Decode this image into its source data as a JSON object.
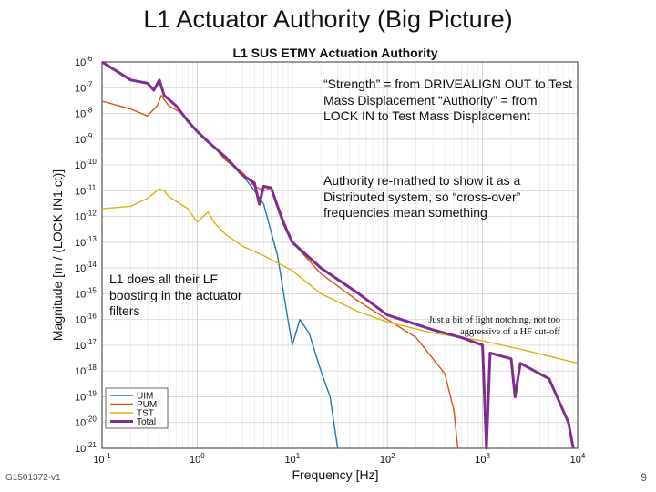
{
  "slide": {
    "title": "L1 Actuator Authority (Big Picture)",
    "doc_id": "G1501372-v1",
    "page_number": "9",
    "annotations": {
      "strength": "“Strength” = from DRIVEALIGN OUT to Test Mass Displacement “Authority” = from LOCK IN to Test Mass Displacement",
      "remathed": "Authority re-mathed to show it as a Distributed system, so “cross-over” frequencies mean something",
      "lf_boost": "L1 does all their LF boosting in the actuator filters",
      "notching": "Just a bit of light notching, not too aggressive of a HF cut-off"
    }
  },
  "chart_data": {
    "type": "line",
    "title": "L1 SUS ETMY Actuation Authority",
    "xlabel": "Frequency [Hz]",
    "ylabel": "Magnitude [m / (LOCK IN1 ct)]",
    "xscale": "log",
    "yscale": "log",
    "xlim": [
      0.1,
      10000
    ],
    "ylim": [
      1e-21,
      1e-06
    ],
    "xticks": [
      0.1,
      1,
      10,
      100,
      1000,
      10000
    ],
    "yticks": [
      1e-06,
      1e-07,
      1e-08,
      1e-09,
      1e-10,
      1e-11,
      1e-12,
      1e-13,
      1e-14,
      1e-15,
      1e-16,
      1e-17,
      1e-18,
      1e-19,
      1e-20,
      1e-21
    ],
    "grid": true,
    "legend": "bottom-left",
    "colors": {
      "UIM": "#1f77b4",
      "PUM": "#d95319",
      "TST": "#e0b010",
      "Total": "#7e2f8e"
    },
    "series": [
      {
        "name": "UIM",
        "points": [
          [
            0.1,
            1e-06
          ],
          [
            0.2,
            2e-07
          ],
          [
            0.3,
            1.5e-07
          ],
          [
            0.35,
            8e-08
          ],
          [
            0.4,
            2e-07
          ],
          [
            0.45,
            5e-08
          ],
          [
            0.6,
            2e-08
          ],
          [
            0.8,
            5e-09
          ],
          [
            1,
            2e-09
          ],
          [
            1.3,
            8e-10
          ],
          [
            2,
            2e-10
          ],
          [
            3,
            4e-11
          ],
          [
            4,
            1e-11
          ],
          [
            5,
            3e-12
          ],
          [
            7,
            3e-14
          ],
          [
            9,
            1e-16
          ],
          [
            10,
            1e-17
          ],
          [
            12,
            1e-16
          ],
          [
            15,
            3e-17
          ],
          [
            20,
            1e-18
          ],
          [
            25,
            1e-19
          ],
          [
            30,
            1e-21
          ]
        ]
      },
      {
        "name": "PUM",
        "points": [
          [
            0.1,
            3e-08
          ],
          [
            0.2,
            1.5e-08
          ],
          [
            0.3,
            8e-09
          ],
          [
            0.38,
            2e-08
          ],
          [
            0.42,
            5e-08
          ],
          [
            0.5,
            2e-08
          ],
          [
            0.7,
            1e-08
          ],
          [
            1,
            2e-09
          ],
          [
            1.5,
            5e-10
          ],
          [
            2,
            1.5e-10
          ],
          [
            3,
            5e-11
          ],
          [
            4,
            1.5e-11
          ],
          [
            5,
            1e-11
          ],
          [
            6,
            1.3e-11
          ],
          [
            8,
            8e-13
          ],
          [
            10,
            1e-13
          ],
          [
            20,
            6e-15
          ],
          [
            50,
            5e-16
          ],
          [
            100,
            1e-16
          ],
          [
            200,
            2e-17
          ],
          [
            400,
            8e-19
          ],
          [
            500,
            3e-20
          ],
          [
            550,
            1e-21
          ]
        ]
      },
      {
        "name": "TST",
        "points": [
          [
            0.1,
            2e-12
          ],
          [
            0.2,
            2.5e-12
          ],
          [
            0.3,
            5e-12
          ],
          [
            0.4,
            1.2e-11
          ],
          [
            0.45,
            1e-11
          ],
          [
            0.5,
            6e-12
          ],
          [
            0.8,
            2e-12
          ],
          [
            1,
            6e-13
          ],
          [
            1.3,
            1.5e-12
          ],
          [
            1.5,
            6e-13
          ],
          [
            2,
            2e-13
          ],
          [
            3,
            7e-14
          ],
          [
            5,
            3e-14
          ],
          [
            10,
            8e-15
          ],
          [
            20,
            1e-15
          ],
          [
            50,
            2e-16
          ],
          [
            100,
            8e-17
          ],
          [
            300,
            3e-17
          ],
          [
            1000,
            1.5e-17
          ],
          [
            3000,
            6e-18
          ],
          [
            10000,
            2e-18
          ]
        ]
      },
      {
        "name": "Total",
        "points": [
          [
            0.1,
            1e-06
          ],
          [
            0.2,
            2e-07
          ],
          [
            0.3,
            1.5e-07
          ],
          [
            0.35,
            8e-08
          ],
          [
            0.4,
            2e-07
          ],
          [
            0.45,
            5e-08
          ],
          [
            0.6,
            2e-08
          ],
          [
            0.8,
            5e-09
          ],
          [
            1,
            2e-09
          ],
          [
            1.3,
            8e-10
          ],
          [
            2,
            2e-10
          ],
          [
            3,
            4e-11
          ],
          [
            4,
            2e-11
          ],
          [
            4.5,
            3e-12
          ],
          [
            5,
            1.5e-11
          ],
          [
            6,
            1.3e-11
          ],
          [
            8,
            6e-13
          ],
          [
            10,
            1e-13
          ],
          [
            20,
            1e-14
          ],
          [
            50,
            1e-15
          ],
          [
            100,
            1.5e-16
          ],
          [
            300,
            4e-17
          ],
          [
            600,
            2e-17
          ],
          [
            1000,
            1e-17
          ],
          [
            1100,
            1e-21
          ],
          [
            1200,
            5e-18
          ],
          [
            2000,
            3e-18
          ],
          [
            2200,
            1e-19
          ],
          [
            2500,
            2e-18
          ],
          [
            5000,
            5e-19
          ],
          [
            8000,
            1e-20
          ],
          [
            9000,
            1e-21
          ]
        ]
      }
    ]
  }
}
